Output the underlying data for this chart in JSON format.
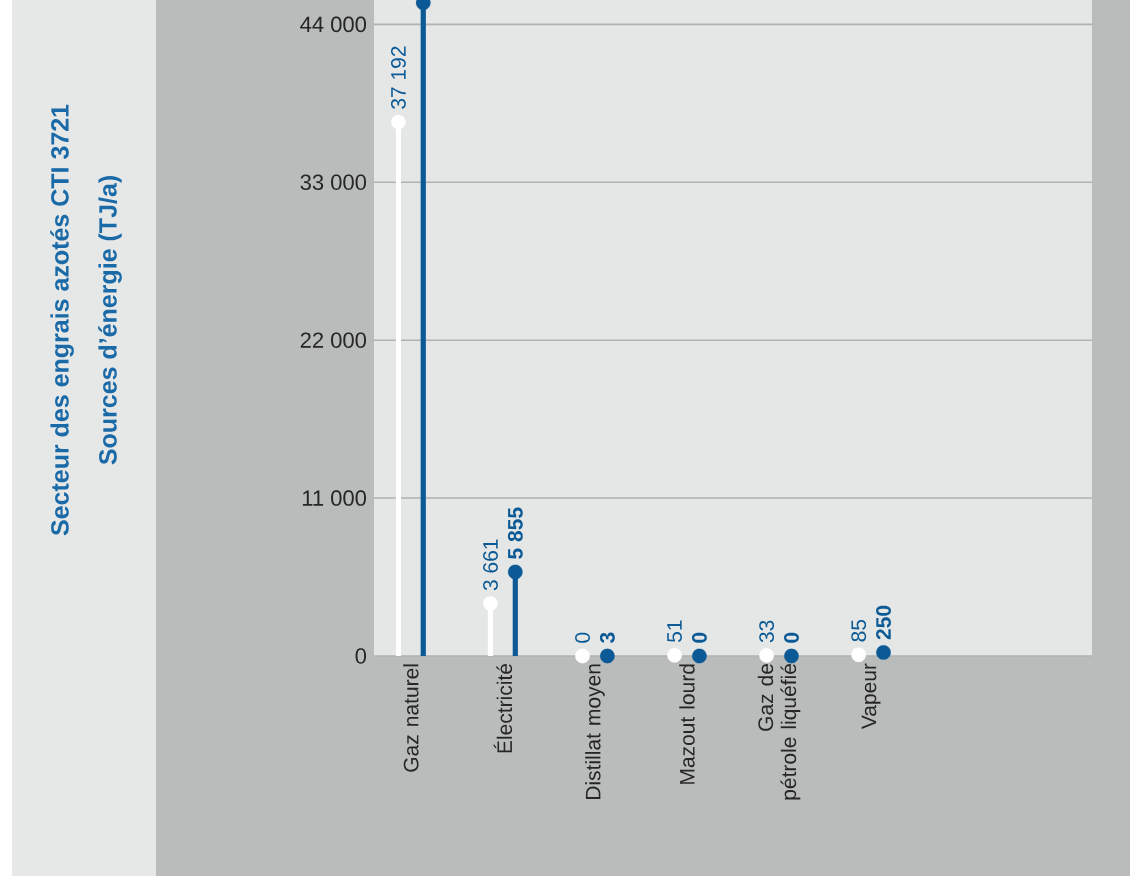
{
  "chart_data": {
    "type": "lollipop",
    "title": "Secteur des engrais azotés CTI 3721",
    "annotations": [
      "Sources d’énergie (TJ/a)"
    ],
    "categories": [
      "Gaz naturel",
      "Électricité",
      "Distillat moyen",
      "Mazout lourd",
      "Gaz de pétrole liquéfié",
      "Vapeur"
    ],
    "series": [
      {
        "color": "#ffffff",
        "values": [
          37192,
          3661,
          0,
          51,
          33,
          85
        ],
        "value_labels": [
          "37 192",
          "3 661",
          "0",
          "51",
          "33",
          "85"
        ]
      },
      {
        "color": "#0b5a96",
        "values": [
          45500,
          5855,
          3,
          0,
          0,
          250
        ],
        "value_labels": [
          null,
          "5 855",
          "3",
          "0",
          "0",
          "250"
        ]
      }
    ],
    "ylim": [
      0,
      45700
    ],
    "yticks": [
      {
        "value": 0,
        "label": "0"
      },
      {
        "value": 11000,
        "label": "11 000"
      },
      {
        "value": 22000,
        "label": "22 000"
      },
      {
        "value": 33000,
        "label": "33 000"
      },
      {
        "value": 44000,
        "label": "44 000"
      }
    ],
    "grid": "y",
    "marker": "circle"
  }
}
